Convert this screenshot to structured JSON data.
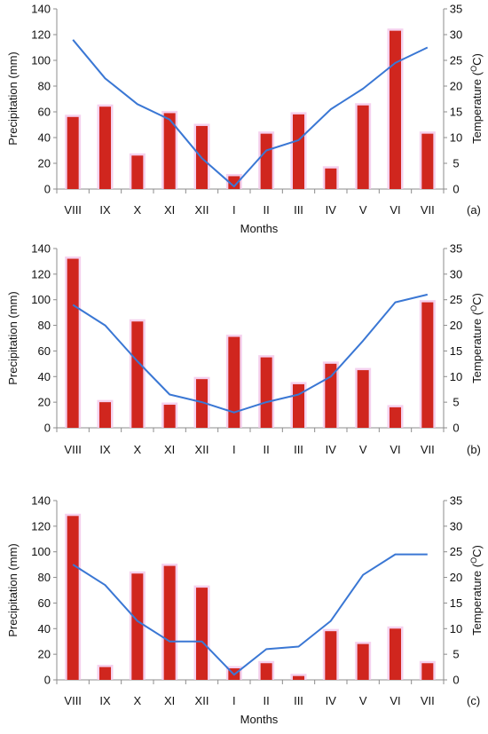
{
  "colors": {
    "bar_fill": "#d0261e",
    "bar_glow": "#f3c6ea",
    "line": "#3a77d4",
    "axis": "#8c8c8c",
    "text": "#111111"
  },
  "chart_data": [
    {
      "type": "bar",
      "panel_label": "(a)",
      "categories": [
        "VIII",
        "IX",
        "X",
        "XI",
        "XII",
        "I",
        "II",
        "III",
        "IV",
        "V",
        "VI",
        "VII"
      ],
      "xlabel": "Months",
      "ylabel": "Precipitation (mm)",
      "y2label": "Temperature (",
      "y2label_sup": "O",
      "y2label_end": "C)",
      "ylim": [
        0,
        140
      ],
      "y2lim": [
        0,
        35
      ],
      "yticks": [
        "0",
        "20",
        "40",
        "60",
        "80",
        "100",
        "120",
        "140"
      ],
      "y2ticks": [
        "0",
        "5",
        "10",
        "15",
        "20",
        "25",
        "30",
        "35"
      ],
      "grid": false,
      "series": [
        {
          "type": "bar",
          "axis": "left",
          "values": [
            56,
            64,
            26,
            59,
            49,
            10,
            43,
            58,
            16,
            65,
            123,
            43
          ]
        },
        {
          "type": "line",
          "axis": "right",
          "values": [
            29,
            21.5,
            16.5,
            13.5,
            6,
            0.5,
            7.5,
            9.5,
            15.5,
            19.5,
            24.5,
            27.5
          ]
        }
      ]
    },
    {
      "type": "bar",
      "panel_label": "(b)",
      "categories": [
        "VIII",
        "IX",
        "X",
        "XI",
        "XII",
        "I",
        "II",
        "III",
        "IV",
        "V",
        "VI",
        "VII"
      ],
      "xlabel": "",
      "ylabel": "Precipitation (mm)",
      "y2label": "Temperature (",
      "y2label_sup": "O",
      "y2label_end": "C)",
      "ylim": [
        0,
        140
      ],
      "y2lim": [
        0,
        35
      ],
      "yticks": [
        "0",
        "20",
        "40",
        "60",
        "80",
        "100",
        "120",
        "140"
      ],
      "y2ticks": [
        "0",
        "5",
        "10",
        "15",
        "20",
        "25",
        "30",
        "35"
      ],
      "grid": false,
      "series": [
        {
          "type": "bar",
          "axis": "left",
          "values": [
            132,
            20,
            83,
            18,
            38,
            71,
            55,
            34,
            50,
            45,
            16,
            98
          ]
        },
        {
          "type": "line",
          "axis": "right",
          "values": [
            24,
            20,
            13,
            6.5,
            5,
            3,
            5,
            6.5,
            10,
            17,
            24.5,
            26
          ]
        }
      ]
    },
    {
      "type": "bar",
      "panel_label": "(c)",
      "categories": [
        "VIII",
        "IX",
        "X",
        "XI",
        "XII",
        "I",
        "II",
        "III",
        "IV",
        "V",
        "VI",
        "VII"
      ],
      "xlabel": "Months",
      "ylabel": "Precipitation (mm)",
      "y2label": "Temperature (",
      "y2label_sup": "O",
      "y2label_end": "C)",
      "ylim": [
        0,
        140
      ],
      "y2lim": [
        0,
        35
      ],
      "yticks": [
        "0",
        "20",
        "40",
        "60",
        "80",
        "100",
        "120",
        "140"
      ],
      "y2ticks": [
        "0",
        "5",
        "10",
        "15",
        "20",
        "25",
        "30",
        "35"
      ],
      "grid": false,
      "series": [
        {
          "type": "bar",
          "axis": "left",
          "values": [
            128,
            10,
            83,
            89,
            72,
            9,
            13,
            3,
            38,
            28,
            40,
            13
          ]
        },
        {
          "type": "line",
          "axis": "right",
          "values": [
            22.5,
            18.5,
            11.5,
            7.5,
            7.5,
            1,
            6,
            6.5,
            11.5,
            20.5,
            24.5,
            24.5
          ]
        }
      ]
    }
  ]
}
